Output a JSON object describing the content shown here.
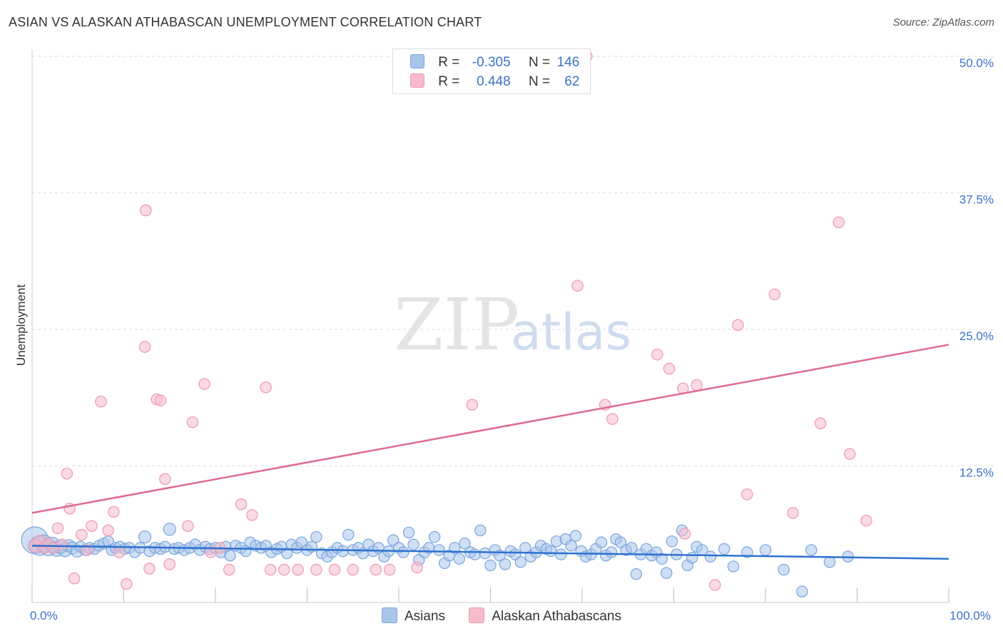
{
  "title": "ASIAN VS ALASKAN ATHABASCAN UNEMPLOYMENT CORRELATION CHART",
  "source": "Source: ZipAtlas.com",
  "watermark": {
    "zip": "ZIP",
    "atlas": "atlas"
  },
  "colors": {
    "asian_fill": "#a9c5ea",
    "asian_stroke": "#7aa6de",
    "asian_line": "#2f72d0",
    "alaskan_fill": "#f6bccc",
    "alaskan_stroke": "#ee98b2",
    "alaskan_line": "#e06a93",
    "tick_label": "#3a72c8",
    "grid": "#dddddd"
  },
  "legend": {
    "asian": {
      "r_label": "R =",
      "r_value": "-0.305",
      "n_label": "N =",
      "n_value": "146"
    },
    "alaskan": {
      "r_label": "R =",
      "r_value": "0.448",
      "n_label": "N =",
      "n_value": "62"
    }
  },
  "bottom_legend": {
    "asian": "Asians",
    "alaskan": "Alaskan Athabascans"
  },
  "chart_data": {
    "type": "scatter",
    "xlabel": "",
    "ylabel": "Unemployment",
    "xlim": [
      0,
      100
    ],
    "ylim": [
      0,
      52
    ],
    "x_tick_labels": [
      {
        "value": 0,
        "label": "0.0%"
      },
      {
        "value": 100,
        "label": "100.0%"
      }
    ],
    "y_tick_labels": [
      {
        "value": 12.5,
        "label": "12.5%"
      },
      {
        "value": 25.0,
        "label": "25.0%"
      },
      {
        "value": 37.5,
        "label": "37.5%"
      },
      {
        "value": 50.0,
        "label": "50.0%"
      }
    ],
    "x_minor_ticks": [
      0,
      10,
      20,
      30,
      40,
      50,
      60,
      70,
      80,
      90,
      100
    ],
    "series": [
      {
        "name": "Asians",
        "r": -0.305,
        "n": 146,
        "trend": {
          "x": [
            0,
            100
          ],
          "y": [
            5.2,
            4.0
          ]
        },
        "points": [
          [
            0.3,
            5.7,
            22
          ],
          [
            0.8,
            5.2,
            16
          ],
          [
            1.3,
            5.4,
            14
          ],
          [
            1.8,
            5.0,
            13
          ],
          [
            2.2,
            5.3,
            12
          ],
          [
            2.7,
            4.9,
            12
          ],
          [
            3.1,
            5.1,
            11
          ],
          [
            3.6,
            4.8,
            11
          ],
          [
            4.0,
            5.2,
            10
          ],
          [
            4.4,
            5.0,
            10
          ],
          [
            4.9,
            4.7,
            10
          ],
          [
            5.3,
            5.1,
            9
          ],
          [
            5.8,
            4.8,
            9
          ],
          [
            6.3,
            5.0,
            9
          ],
          [
            6.8,
            4.9,
            9
          ],
          [
            7.3,
            5.2,
            9
          ],
          [
            7.8,
            5.4,
            9
          ],
          [
            8.3,
            5.6,
            9
          ],
          [
            8.7,
            4.8,
            9
          ],
          [
            9.1,
            5.0,
            9
          ],
          [
            9.6,
            5.1,
            9
          ],
          [
            10.1,
            4.9,
            9
          ],
          [
            10.6,
            5.0,
            9
          ],
          [
            11.2,
            4.6,
            9
          ],
          [
            11.8,
            5.0,
            9
          ],
          [
            12.3,
            6.0,
            10
          ],
          [
            12.8,
            4.7,
            9
          ],
          [
            13.4,
            5.0,
            9
          ],
          [
            14.0,
            4.9,
            9
          ],
          [
            14.5,
            5.1,
            9
          ],
          [
            15.0,
            6.7,
            10
          ],
          [
            15.5,
            4.9,
            9
          ],
          [
            16.0,
            5.0,
            9
          ],
          [
            16.6,
            4.8,
            9
          ],
          [
            17.2,
            5.0,
            9
          ],
          [
            17.8,
            5.3,
            9
          ],
          [
            18.3,
            4.8,
            9
          ],
          [
            18.9,
            5.1,
            9
          ],
          [
            19.4,
            4.9,
            9
          ],
          [
            20.0,
            5.0,
            9
          ],
          [
            20.6,
            4.6,
            9
          ],
          [
            21.1,
            5.1,
            9
          ],
          [
            21.6,
            4.3,
            9
          ],
          [
            22.2,
            5.2,
            9
          ],
          [
            22.8,
            5.0,
            9
          ],
          [
            23.3,
            4.7,
            9
          ],
          [
            23.8,
            5.5,
            9
          ],
          [
            24.4,
            5.2,
            9
          ],
          [
            25.0,
            5.0,
            9
          ],
          [
            25.5,
            5.2,
            9
          ],
          [
            26.1,
            4.6,
            9
          ],
          [
            26.7,
            4.9,
            9
          ],
          [
            27.2,
            5.1,
            9
          ],
          [
            27.8,
            4.5,
            9
          ],
          [
            28.3,
            5.3,
            9
          ],
          [
            28.9,
            5.0,
            9
          ],
          [
            29.4,
            5.5,
            9
          ],
          [
            30.0,
            4.8,
            9
          ],
          [
            30.5,
            5.1,
            9
          ],
          [
            31.0,
            6.0,
            9
          ],
          [
            31.6,
            4.5,
            9
          ],
          [
            32.2,
            4.2,
            9
          ],
          [
            32.7,
            4.6,
            9
          ],
          [
            33.3,
            5.0,
            9
          ],
          [
            33.9,
            4.7,
            9
          ],
          [
            34.5,
            6.2,
            9
          ],
          [
            35.0,
            4.8,
            9
          ],
          [
            35.6,
            5.0,
            9
          ],
          [
            36.1,
            4.5,
            9
          ],
          [
            36.7,
            5.3,
            9
          ],
          [
            37.2,
            4.7,
            9
          ],
          [
            37.8,
            5.0,
            9
          ],
          [
            38.4,
            4.2,
            9
          ],
          [
            38.9,
            4.7,
            9
          ],
          [
            39.4,
            5.7,
            9
          ],
          [
            40.0,
            5.0,
            9
          ],
          [
            40.5,
            4.6,
            9
          ],
          [
            41.1,
            6.4,
            9
          ],
          [
            41.6,
            5.3,
            9
          ],
          [
            42.2,
            3.9,
            9
          ],
          [
            42.8,
            4.6,
            9
          ],
          [
            43.3,
            5.0,
            9
          ],
          [
            43.9,
            6.0,
            9
          ],
          [
            44.4,
            4.8,
            9
          ],
          [
            45.0,
            3.6,
            9
          ],
          [
            45.5,
            4.3,
            9
          ],
          [
            46.1,
            5.0,
            9
          ],
          [
            46.6,
            4.0,
            9
          ],
          [
            47.2,
            5.4,
            9
          ],
          [
            47.8,
            4.6,
            9
          ],
          [
            48.3,
            4.4,
            9
          ],
          [
            48.9,
            6.6,
            9
          ],
          [
            49.4,
            4.5,
            9
          ],
          [
            50.0,
            3.4,
            9
          ],
          [
            50.5,
            4.8,
            9
          ],
          [
            51.0,
            4.3,
            9
          ],
          [
            51.6,
            3.5,
            9
          ],
          [
            52.2,
            4.7,
            9
          ],
          [
            52.7,
            4.4,
            9
          ],
          [
            53.3,
            3.7,
            9
          ],
          [
            53.8,
            5.0,
            9
          ],
          [
            54.4,
            4.2,
            9
          ],
          [
            55.0,
            4.6,
            9
          ],
          [
            55.5,
            5.2,
            9
          ],
          [
            56.1,
            4.9,
            9
          ],
          [
            56.6,
            4.7,
            9
          ],
          [
            57.2,
            5.6,
            9
          ],
          [
            57.7,
            4.4,
            9
          ],
          [
            58.2,
            5.8,
            9
          ],
          [
            58.8,
            5.2,
            9
          ],
          [
            59.3,
            6.1,
            9
          ],
          [
            59.9,
            4.7,
            9
          ],
          [
            60.4,
            4.2,
            9
          ],
          [
            61.0,
            4.4,
            9
          ],
          [
            61.5,
            4.9,
            9
          ],
          [
            62.1,
            5.5,
            9
          ],
          [
            62.6,
            4.3,
            9
          ],
          [
            63.2,
            4.6,
            9
          ],
          [
            63.7,
            5.8,
            9
          ],
          [
            64.2,
            5.5,
            9
          ],
          [
            64.8,
            4.8,
            9
          ],
          [
            65.4,
            5.0,
            9
          ],
          [
            65.9,
            2.6,
            9
          ],
          [
            66.4,
            4.4,
            9
          ],
          [
            67.0,
            4.9,
            9
          ],
          [
            67.6,
            4.3,
            9
          ],
          [
            68.1,
            4.6,
            9
          ],
          [
            68.7,
            4.0,
            9
          ],
          [
            69.2,
            2.7,
            9
          ],
          [
            69.8,
            5.6,
            9
          ],
          [
            70.3,
            4.4,
            9
          ],
          [
            70.9,
            6.6,
            9
          ],
          [
            71.5,
            3.4,
            9
          ],
          [
            72.0,
            4.1,
            9
          ],
          [
            72.5,
            5.1,
            9
          ],
          [
            73.1,
            4.8,
            9
          ],
          [
            74.0,
            4.2,
            9
          ],
          [
            75.5,
            4.9,
            9
          ],
          [
            76.5,
            3.3,
            9
          ],
          [
            78.0,
            4.6,
            9
          ],
          [
            80.0,
            4.8,
            9
          ],
          [
            82.0,
            3.0,
            9
          ],
          [
            84.0,
            1.0,
            9
          ],
          [
            85.0,
            4.8,
            9
          ],
          [
            87.0,
            3.7,
            9
          ],
          [
            89.0,
            4.2,
            9
          ]
        ]
      },
      {
        "name": "Alaskan Athabascans",
        "r": 0.448,
        "n": 62,
        "trend": {
          "x": [
            0,
            100
          ],
          "y": [
            8.2,
            23.6
          ]
        },
        "points": [
          [
            0.3,
            5.2,
            11
          ],
          [
            0.8,
            5.6,
            10
          ],
          [
            1.3,
            5.0,
            9
          ],
          [
            1.8,
            5.4,
            9
          ],
          [
            2.3,
            5.0,
            9
          ],
          [
            2.8,
            6.8,
            9
          ],
          [
            3.3,
            5.3,
            9
          ],
          [
            3.8,
            11.8,
            9
          ],
          [
            4.1,
            8.6,
            9
          ],
          [
            4.6,
            2.2,
            9
          ],
          [
            5.4,
            6.2,
            9
          ],
          [
            6.0,
            4.8,
            9
          ],
          [
            6.5,
            7.0,
            9
          ],
          [
            7.5,
            18.4,
            9
          ],
          [
            8.3,
            6.6,
            9
          ],
          [
            8.9,
            8.3,
            9
          ],
          [
            9.5,
            4.6,
            9
          ],
          [
            10.3,
            1.7,
            9
          ],
          [
            12.3,
            23.4,
            9
          ],
          [
            12.4,
            35.9,
            9
          ],
          [
            12.8,
            3.1,
            9
          ],
          [
            13.6,
            18.6,
            9
          ],
          [
            14.0,
            18.5,
            9
          ],
          [
            14.5,
            11.3,
            9
          ],
          [
            15.0,
            3.5,
            9
          ],
          [
            17.0,
            7.0,
            9
          ],
          [
            17.5,
            16.5,
            9
          ],
          [
            18.8,
            20.0,
            9
          ],
          [
            19.5,
            4.6,
            9
          ],
          [
            20.5,
            5.0,
            9
          ],
          [
            21.5,
            3.0,
            9
          ],
          [
            22.8,
            9.0,
            9
          ],
          [
            24.0,
            8.0,
            9
          ],
          [
            25.5,
            19.7,
            9
          ],
          [
            26.0,
            3.0,
            9
          ],
          [
            27.5,
            3.0,
            9
          ],
          [
            29.0,
            3.0,
            9
          ],
          [
            31.0,
            3.0,
            9
          ],
          [
            33.0,
            3.0,
            9
          ],
          [
            35.0,
            3.0,
            9
          ],
          [
            37.5,
            3.0,
            9
          ],
          [
            39.0,
            3.0,
            9
          ],
          [
            42.0,
            3.2,
            9
          ],
          [
            48.0,
            18.1,
            9
          ],
          [
            59.5,
            29.0,
            9
          ],
          [
            60.5,
            50.0,
            9
          ],
          [
            62.5,
            18.1,
            9
          ],
          [
            63.3,
            16.8,
            9
          ],
          [
            68.2,
            22.7,
            9
          ],
          [
            69.5,
            21.4,
            9
          ],
          [
            71.0,
            19.6,
            9
          ],
          [
            71.2,
            6.3,
            9
          ],
          [
            72.5,
            19.9,
            9
          ],
          [
            74.5,
            1.6,
            9
          ],
          [
            77.0,
            25.4,
            9
          ],
          [
            78.0,
            9.9,
            9
          ],
          [
            81.0,
            28.2,
            9
          ],
          [
            83.0,
            8.2,
            9
          ],
          [
            86.0,
            16.4,
            9
          ],
          [
            88.0,
            34.8,
            9
          ],
          [
            89.2,
            13.6,
            9
          ],
          [
            91.0,
            7.5,
            9
          ]
        ]
      }
    ]
  }
}
